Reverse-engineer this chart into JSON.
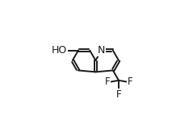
{
  "bg_color": "#ffffff",
  "line_color": "#1a1a1a",
  "line_width": 1.4,
  "dbo": 0.011,
  "figsize": [
    2.39,
    1.54
  ],
  "dpi": 100,
  "xlim": [
    0.08,
    0.98
  ],
  "ylim": [
    0.08,
    0.95
  ],
  "bl": 0.105,
  "c8a": [
    0.5,
    0.535
  ],
  "label_fontsize": 9.0,
  "f_fontsize": 8.5
}
